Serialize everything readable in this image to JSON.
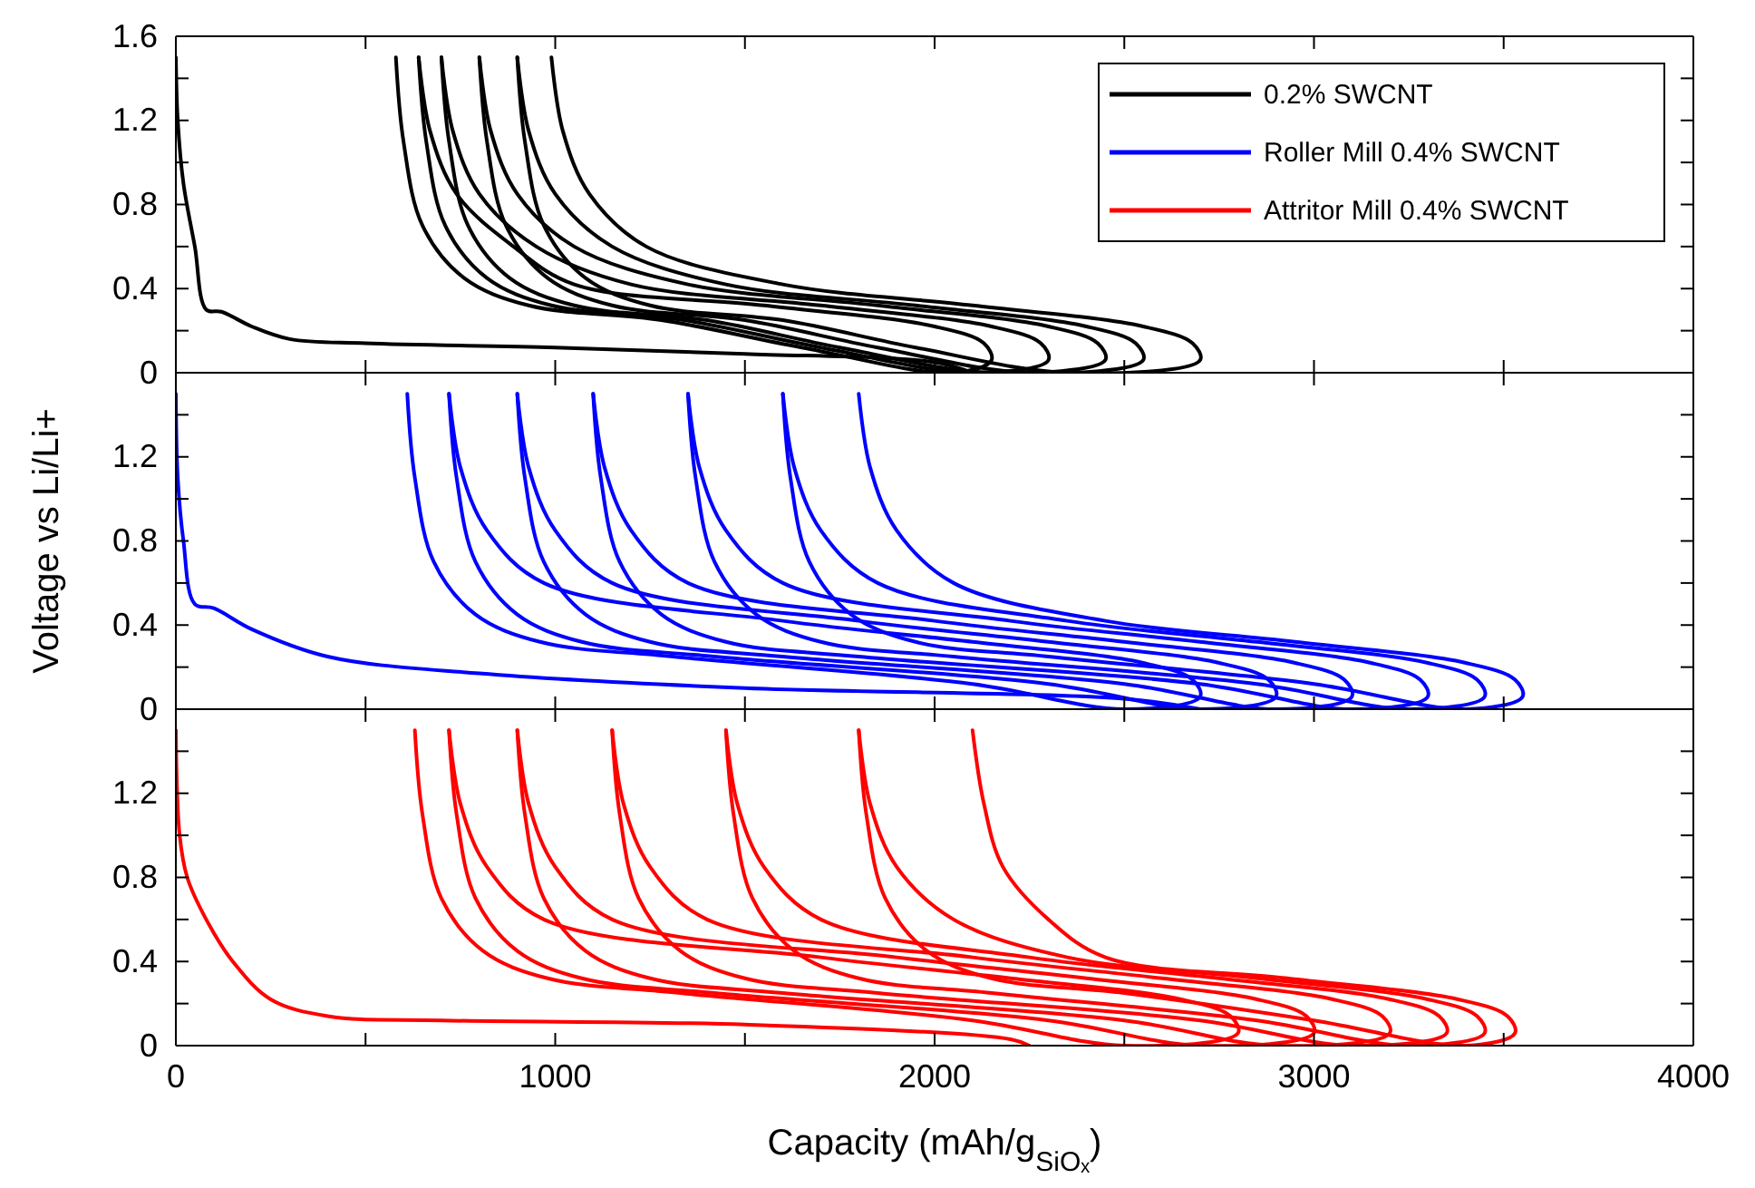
{
  "chart_data": [
    {
      "type": "line",
      "xlim": [
        0,
        4000
      ],
      "xticks": [
        0,
        {
          "value": 500,
          "label": null
        },
        1000,
        {
          "value": 1500,
          "label": null
        },
        2000,
        {
          "value": 2500,
          "label": null
        },
        3000,
        {
          "value": 3500,
          "label": null
        },
        4000
      ],
      "ylim": [
        0,
        1.6
      ],
      "yticks": [
        0,
        {
          "value": 0.2,
          "label": null
        },
        0.4,
        {
          "value": 0.6,
          "label": null
        },
        0.8,
        {
          "value": 1,
          "label": null
        },
        1.2,
        {
          "value": 1.4,
          "label": null
        },
        1.6
      ],
      "tick_labels": "y",
      "legend": "top right",
      "line_style": "solid",
      "series": [
        {
          "name": "0.2% SWCNT",
          "color": "#000000",
          "x": [
            0,
            5,
            20,
            50,
            80,
            120,
            200,
            300,
            500,
            1000,
            1500,
            2000,
            2100
          ],
          "values": [
            1.5,
            1.2,
            0.9,
            0.6,
            0.3,
            0.29,
            0.22,
            0.16,
            0.14,
            0.12,
            0.09,
            0.05,
            0
          ]
        },
        {
          "color": "#000000",
          "x": [
            580,
            600,
            650,
            760,
            930,
            1280,
            1650,
            2050,
            2150,
            2130,
            2000,
            1550,
            1050,
            890,
            740,
            670,
            640
          ],
          "values": [
            1.5,
            1.1,
            0.7,
            0.45,
            0.32,
            0.25,
            0.12,
            0,
            0.06,
            0.14,
            0.22,
            0.32,
            0.42,
            0.6,
            0.85,
            1.15,
            1.5
          ]
        },
        {
          "color": "#000000",
          "x": [
            640,
            660,
            710,
            820,
            990,
            1340,
            1700,
            2100,
            2300,
            2280,
            2150,
            1700,
            1200,
            950,
            800,
            730,
            700
          ],
          "values": [
            1.5,
            1.1,
            0.7,
            0.45,
            0.32,
            0.25,
            0.12,
            0,
            0.06,
            0.14,
            0.22,
            0.32,
            0.42,
            0.6,
            0.85,
            1.15,
            1.5
          ]
        },
        {
          "color": "#000000",
          "x": [
            700,
            720,
            770,
            880,
            1050,
            1400,
            1750,
            2150,
            2450,
            2430,
            2300,
            1850,
            1350,
            1050,
            900,
            830,
            800
          ],
          "values": [
            1.5,
            1.1,
            0.7,
            0.45,
            0.32,
            0.25,
            0.12,
            0,
            0.06,
            0.14,
            0.22,
            0.32,
            0.42,
            0.6,
            0.85,
            1.15,
            1.5
          ]
        },
        {
          "color": "#000000",
          "x": [
            800,
            820,
            870,
            980,
            1150,
            1500,
            1850,
            2250,
            2550,
            2530,
            2400,
            1950,
            1450,
            1150,
            1000,
            930,
            900
          ],
          "values": [
            1.5,
            1.1,
            0.7,
            0.45,
            0.32,
            0.25,
            0.12,
            0,
            0.06,
            0.14,
            0.22,
            0.32,
            0.42,
            0.6,
            0.85,
            1.15,
            1.5
          ]
        },
        {
          "color": "#000000",
          "x": [
            900,
            920,
            970,
            1080,
            1250,
            1600,
            1950,
            2350,
            2700,
            2680,
            2550,
            2100,
            1600,
            1240,
            1090,
            1020,
            990
          ],
          "values": [
            1.5,
            1.1,
            0.7,
            0.45,
            0.32,
            0.25,
            0.12,
            0,
            0.06,
            0.14,
            0.22,
            0.32,
            0.42,
            0.6,
            0.85,
            1.15,
            1.5
          ]
        }
      ]
    },
    {
      "type": "line",
      "ylabel": "Voltage vs Li/Li+",
      "xlim": [
        0,
        4000
      ],
      "xticks": [
        0,
        {
          "value": 500,
          "label": null
        },
        1000,
        {
          "value": 1500,
          "label": null
        },
        2000,
        {
          "value": 2500,
          "label": null
        },
        3000,
        {
          "value": 3500,
          "label": null
        },
        4000
      ],
      "ylim": [
        0,
        1.6
      ],
      "yticks": [
        0,
        {
          "value": 0.2,
          "label": null
        },
        0.4,
        {
          "value": 0.6,
          "label": null
        },
        0.8,
        {
          "value": 1,
          "label": null
        },
        1.2,
        {
          "value": 1.4,
          "label": null
        },
        {
          "value": 1.6,
          "label": null
        }
      ],
      "tick_labels": "y",
      "line_style": "solid",
      "series": [
        {
          "name": "Roller Mill 0.4% SWCNT",
          "color": "#0000ff",
          "x": [
            0,
            5,
            20,
            50,
            100,
            200,
            400,
            800,
            1500,
            2500,
            2700
          ],
          "values": [
            1.5,
            1.1,
            0.8,
            0.5,
            0.48,
            0.38,
            0.25,
            0.17,
            0.1,
            0.05,
            0
          ]
        },
        {
          "color": "#0000ff",
          "x": [
            610,
            630,
            680,
            790,
            960,
            1310,
            2100,
            2500,
            2700,
            2680,
            2550,
            2100,
            1600,
            970,
            820,
            750,
            720
          ],
          "values": [
            1.5,
            1.1,
            0.7,
            0.45,
            0.32,
            0.25,
            0.12,
            0,
            0.06,
            0.14,
            0.22,
            0.32,
            0.42,
            0.6,
            0.85,
            1.15,
            1.5
          ]
        },
        {
          "color": "#0000ff",
          "x": [
            720,
            740,
            790,
            900,
            1070,
            1420,
            2300,
            2700,
            2900,
            2880,
            2750,
            2300,
            1800,
            1150,
            1000,
            930,
            900
          ],
          "values": [
            1.5,
            1.1,
            0.7,
            0.45,
            0.32,
            0.25,
            0.12,
            0,
            0.06,
            0.14,
            0.22,
            0.32,
            0.42,
            0.6,
            0.85,
            1.15,
            1.5
          ]
        },
        {
          "color": "#0000ff",
          "x": [
            900,
            920,
            970,
            1080,
            1250,
            1600,
            2500,
            2900,
            3100,
            3080,
            2950,
            2500,
            2000,
            1350,
            1200,
            1130,
            1100
          ],
          "values": [
            1.5,
            1.1,
            0.7,
            0.45,
            0.32,
            0.25,
            0.12,
            0,
            0.06,
            0.14,
            0.22,
            0.32,
            0.42,
            0.6,
            0.85,
            1.15,
            1.5
          ]
        },
        {
          "color": "#0000ff",
          "x": [
            1100,
            1120,
            1170,
            1280,
            1450,
            1800,
            2700,
            3100,
            3300,
            3280,
            3150,
            2700,
            2200,
            1600,
            1450,
            1380,
            1350
          ],
          "values": [
            1.5,
            1.1,
            0.7,
            0.45,
            0.32,
            0.25,
            0.12,
            0,
            0.06,
            0.14,
            0.22,
            0.32,
            0.42,
            0.6,
            0.85,
            1.15,
            1.5
          ]
        },
        {
          "color": "#0000ff",
          "x": [
            1350,
            1370,
            1420,
            1530,
            1700,
            2050,
            2850,
            3250,
            3450,
            3430,
            3300,
            2850,
            2350,
            1850,
            1700,
            1630,
            1600
          ],
          "values": [
            1.5,
            1.1,
            0.7,
            0.45,
            0.32,
            0.25,
            0.12,
            0,
            0.06,
            0.14,
            0.22,
            0.32,
            0.42,
            0.6,
            0.85,
            1.15,
            1.5
          ]
        },
        {
          "color": "#0000ff",
          "x": [
            1600,
            1620,
            1670,
            1780,
            1950,
            2300,
            3000,
            3400,
            3550,
            3530,
            3400,
            2950,
            2450,
            2050,
            1900,
            1830,
            1800
          ],
          "values": [
            1.5,
            1.1,
            0.7,
            0.45,
            0.32,
            0.25,
            0.12,
            0,
            0.06,
            0.14,
            0.22,
            0.32,
            0.42,
            0.6,
            0.85,
            1.15,
            1.5
          ]
        }
      ]
    },
    {
      "type": "line",
      "xlabel": "Capacity (mAh/g$_{SiOₓ}$)",
      "xlim": [
        0,
        4000
      ],
      "xticks": [
        0,
        {
          "value": 500,
          "label": null
        },
        1000,
        {
          "value": 1500,
          "label": null
        },
        2000,
        {
          "value": 2500,
          "label": null
        },
        3000,
        {
          "value": 3500,
          "label": null
        },
        4000
      ],
      "ylim": [
        0,
        1.6
      ],
      "yticks": [
        0,
        {
          "value": 0.2,
          "label": null
        },
        0.4,
        {
          "value": 0.6,
          "label": null
        },
        0.8,
        {
          "value": 1,
          "label": null
        },
        1.2,
        {
          "value": 1.4,
          "label": null
        },
        {
          "value": 1.6,
          "label": null
        }
      ],
      "line_style": "solid",
      "series": [
        {
          "name": "Attritor Mill 0.4% SWCNT",
          "color": "#ff0000",
          "x": [
            0,
            10,
            30,
            80,
            150,
            250,
            400,
            700,
            1500,
            2200,
            2250
          ],
          "values": [
            1.5,
            1.0,
            0.8,
            0.6,
            0.4,
            0.22,
            0.14,
            0.12,
            0.1,
            0.03,
            0
          ]
        },
        {
          "color": "#ff0000",
          "x": [
            630,
            650,
            700,
            810,
            980,
            1330,
            2100,
            2500,
            2800,
            2780,
            2650,
            2200,
            1700,
            970,
            820,
            750,
            720
          ],
          "values": [
            1.5,
            1.1,
            0.7,
            0.45,
            0.32,
            0.25,
            0.12,
            0,
            0.06,
            0.14,
            0.22,
            0.32,
            0.42,
            0.6,
            0.85,
            1.15,
            1.5
          ]
        },
        {
          "color": "#ff0000",
          "x": [
            720,
            740,
            790,
            900,
            1070,
            1420,
            2300,
            2700,
            3000,
            2980,
            2850,
            2400,
            1900,
            1150,
            1000,
            930,
            900
          ],
          "values": [
            1.5,
            1.1,
            0.7,
            0.45,
            0.32,
            0.25,
            0.12,
            0,
            0.06,
            0.14,
            0.22,
            0.32,
            0.42,
            0.6,
            0.85,
            1.15,
            1.5
          ]
        },
        {
          "color": "#ff0000",
          "x": [
            900,
            920,
            970,
            1080,
            1250,
            1600,
            2500,
            2900,
            3200,
            3180,
            3050,
            2600,
            2100,
            1400,
            1250,
            1180,
            1150
          ],
          "values": [
            1.5,
            1.1,
            0.7,
            0.45,
            0.32,
            0.25,
            0.12,
            0,
            0.06,
            0.14,
            0.22,
            0.32,
            0.42,
            0.6,
            0.85,
            1.15,
            1.5
          ]
        },
        {
          "color": "#ff0000",
          "x": [
            1150,
            1170,
            1220,
            1330,
            1500,
            1850,
            2700,
            3100,
            3350,
            3330,
            3200,
            2750,
            2250,
            1700,
            1550,
            1480,
            1450
          ],
          "values": [
            1.5,
            1.1,
            0.7,
            0.45,
            0.32,
            0.25,
            0.12,
            0,
            0.06,
            0.14,
            0.22,
            0.32,
            0.42,
            0.6,
            0.85,
            1.15,
            1.5
          ]
        },
        {
          "color": "#ff0000",
          "x": [
            1450,
            1470,
            1520,
            1630,
            1800,
            2150,
            2850,
            3250,
            3450,
            3430,
            3300,
            2850,
            2350,
            2050,
            1900,
            1830,
            1800
          ],
          "values": [
            1.5,
            1.1,
            0.7,
            0.45,
            0.32,
            0.25,
            0.12,
            0,
            0.06,
            0.14,
            0.22,
            0.32,
            0.42,
            0.6,
            0.85,
            1.15,
            1.5
          ]
        },
        {
          "color": "#ff0000",
          "x": [
            1800,
            1820,
            1870,
            1980,
            2150,
            2500,
            3000,
            3400,
            3530,
            3510,
            3380,
            2930,
            2450,
            2300,
            2180,
            2130,
            2100
          ],
          "values": [
            1.5,
            1.1,
            0.7,
            0.45,
            0.32,
            0.25,
            0.12,
            0,
            0.06,
            0.14,
            0.22,
            0.32,
            0.42,
            0.6,
            0.85,
            1.15,
            1.5
          ]
        }
      ]
    }
  ]
}
